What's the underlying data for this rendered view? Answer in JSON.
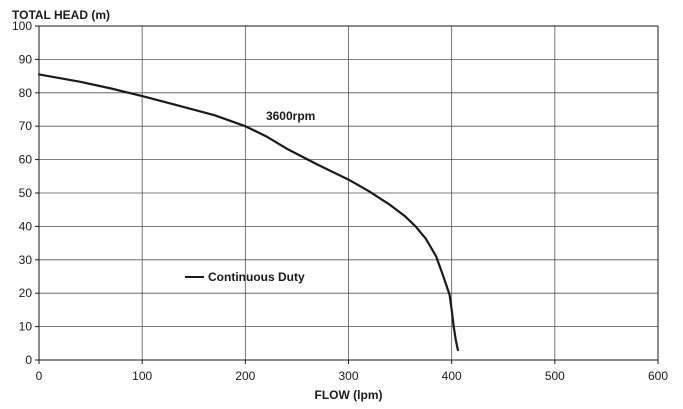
{
  "chart_data": {
    "type": "line",
    "ylabel": "TOTAL HEAD (m)",
    "xlabel": "FLOW (lpm)",
    "xlim": [
      0,
      600
    ],
    "ylim": [
      0,
      100
    ],
    "x_ticks": [
      0,
      100,
      200,
      300,
      400,
      500,
      600
    ],
    "y_ticks": [
      0,
      10,
      20,
      30,
      40,
      50,
      60,
      70,
      80,
      90,
      100
    ],
    "grid": true,
    "annotations": [
      {
        "text": "3600rpm",
        "x": 220,
        "y": 73
      }
    ],
    "legend": {
      "position": "lower-left",
      "entries": [
        "Continuous Duty"
      ]
    },
    "series": [
      {
        "name": "Continuous Duty",
        "color": "#1a1a1a",
        "points": [
          [
            0,
            85.5
          ],
          [
            40,
            83.3
          ],
          [
            70,
            81.3
          ],
          [
            100,
            79.0
          ],
          [
            130,
            76.6
          ],
          [
            170,
            73.3
          ],
          [
            200,
            70.0
          ],
          [
            220,
            67.0
          ],
          [
            240,
            63.3
          ],
          [
            270,
            58.5
          ],
          [
            300,
            54.0
          ],
          [
            320,
            50.5
          ],
          [
            340,
            46.5
          ],
          [
            355,
            43.0
          ],
          [
            365,
            40.0
          ],
          [
            375,
            36.3
          ],
          [
            385,
            31.0
          ],
          [
            392,
            25.0
          ],
          [
            398,
            19.5
          ],
          [
            400,
            15.0
          ],
          [
            402,
            10.0
          ],
          [
            404,
            6.0
          ],
          [
            406,
            3.0
          ]
        ]
      }
    ]
  }
}
